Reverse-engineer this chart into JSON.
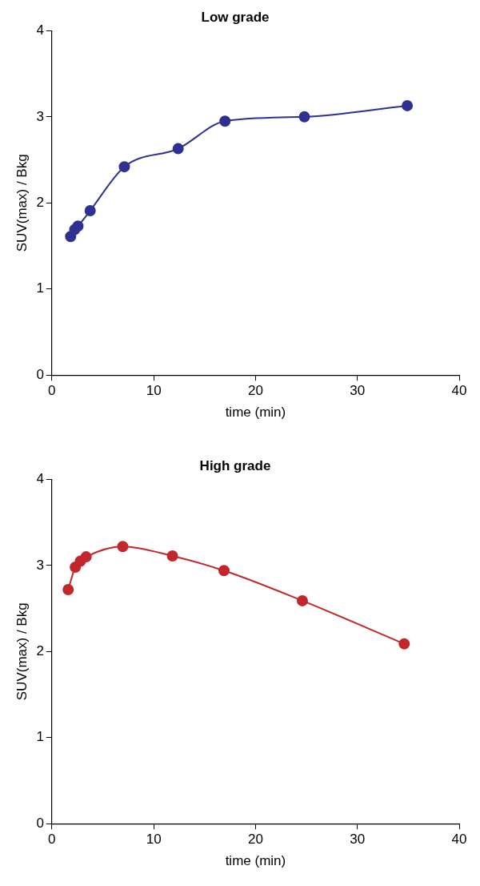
{
  "chart_data": [
    {
      "type": "line",
      "title": "Low grade",
      "xlabel": "time (min)",
      "ylabel": "SUV(max) / Bkg",
      "xlim": [
        0,
        40
      ],
      "xticks": [
        0,
        10,
        20,
        30,
        40
      ],
      "ylim": [
        0,
        4
      ],
      "yticks": [
        0,
        1,
        2,
        3,
        4
      ],
      "grid": false,
      "legend": false,
      "marker": "circle",
      "series": [
        {
          "color": "#2e3192",
          "x": [
            1.84,
            2.24,
            2.56,
            3.76,
            7.12,
            12.4,
            17.0,
            24.8,
            34.9
          ],
          "values": [
            1.61,
            1.69,
            1.73,
            1.91,
            2.42,
            2.63,
            2.95,
            3.0,
            3.13
          ]
        }
      ]
    },
    {
      "type": "line",
      "title": "High grade",
      "xlabel": "time (min)",
      "ylabel": "SUV(max) / Bkg",
      "xlim": [
        0,
        40
      ],
      "xticks": [
        0,
        10,
        20,
        30,
        40
      ],
      "ylim": [
        0,
        4
      ],
      "yticks": [
        0,
        1,
        2,
        3,
        4
      ],
      "grid": false,
      "legend": false,
      "marker": "circle",
      "series": [
        {
          "color": "#c1272d",
          "x": [
            1.6,
            2.3,
            2.8,
            3.36,
            6.96,
            11.84,
            16.9,
            24.6,
            34.6
          ],
          "values": [
            2.72,
            2.98,
            3.05,
            3.1,
            3.22,
            3.11,
            2.94,
            2.59,
            2.09
          ]
        }
      ]
    }
  ]
}
